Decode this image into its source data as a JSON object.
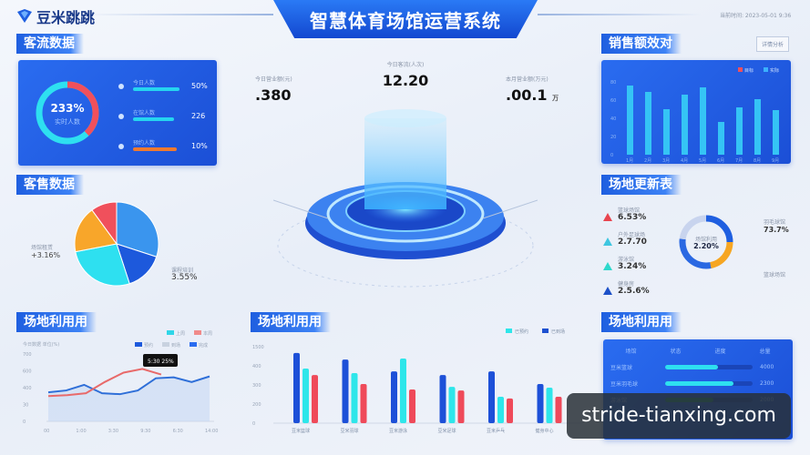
{
  "header": {
    "logo": "豆米跳跳",
    "title": "智慧体育场馆运营系统",
    "datetime": "当前时间: 2023-05-01 9:36"
  },
  "passenger": {
    "title": "客流数据",
    "donut_value": "233%",
    "donut_label": "实时人数",
    "donut_fraction": 0.38,
    "rows": [
      {
        "label": "今日人数",
        "value": "50%",
        "fill": 0.85,
        "color": "#25d5f0"
      },
      {
        "label": "在馆人数",
        "value": "226",
        "fill": 0.75,
        "color": "#25d5f0"
      },
      {
        "label": "预约人数",
        "value": "10%",
        "fill": 0.8,
        "color": "#f07a30"
      }
    ]
  },
  "sales_pie": {
    "title": "客售数据",
    "left_label": "场馆租赁",
    "left_value": "+3.16%",
    "right_label": "课程培训",
    "right_value": "3.55%",
    "slices": [
      {
        "value": 30,
        "color": "#3a95ee"
      },
      {
        "value": 15,
        "color": "#1d59dc"
      },
      {
        "value": 27,
        "color": "#2ee0f0"
      },
      {
        "value": 18,
        "color": "#f8a62a"
      },
      {
        "value": 10,
        "color": "#f0505c"
      }
    ]
  },
  "kpis": [
    {
      "label": "今日营业额(元)",
      "value": ".380",
      "unit": ""
    },
    {
      "label": "今日客流(人次)",
      "value": "12.20",
      "unit": ""
    },
    {
      "label": "本月营业额(万元)",
      "value": ".00.1",
      "unit": "万"
    }
  ],
  "sales_bar": {
    "title": "销售额效对",
    "button": "详情分析",
    "legend": [
      {
        "label": "目标",
        "color": "#f0505c"
      },
      {
        "label": "实际",
        "color": "#3ab0ff"
      }
    ],
    "y_ticks": [
      "0",
      "20",
      "40",
      "60",
      "80"
    ],
    "categories": [
      "1月",
      "2月",
      "3月",
      "4月",
      "5月",
      "6月",
      "7月",
      "8月",
      "9月"
    ],
    "values": [
      76,
      69,
      50,
      66,
      74,
      36,
      52,
      61,
      49
    ]
  },
  "venue_ring": {
    "title": "场地更新表",
    "center_label": "场馆利用",
    "center_value": "2.20%",
    "right_top_label": "羽毛球馆",
    "right_top_value": "73.7%",
    "right_bottom_label": "篮球场馆",
    "items": [
      {
        "label": "篮球场馆",
        "value": "6.53%",
        "color": "#e8444e"
      },
      {
        "label": "户外足球场",
        "value": "2.7.70",
        "color": "#3ec6e0"
      },
      {
        "label": "游泳馆",
        "value": "3.24%",
        "color": "#2ed8cc"
      },
      {
        "label": "健身房",
        "value": "2.5.6%",
        "color": "#1d50c8"
      }
    ],
    "segments": [
      {
        "value": 25,
        "color": "#1f5fe0"
      },
      {
        "value": 22,
        "color": "#f6a623"
      },
      {
        "value": 30,
        "color": "#2a68e2"
      },
      {
        "value": 23,
        "color": "#c8d4ee"
      }
    ]
  },
  "util_line": {
    "title": "场地利用用",
    "subtitle": "今日数据 单位(%)",
    "legend_top": [
      {
        "label": "上周",
        "color": "#2fd6e8"
      },
      {
        "label": "本周",
        "color": "#f08a8a"
      }
    ],
    "legend_bottom": [
      {
        "label": "预约",
        "color": "#1d59dc"
      },
      {
        "label": "到场",
        "color": "#c8d2e0"
      },
      {
        "label": "完成",
        "color": "#2a6cf0"
      }
    ],
    "tooltip": "5:30 25%",
    "x_ticks": [
      "00",
      "1:00",
      "3:30",
      "9:30",
      "6:30",
      "14:00"
    ],
    "y_ticks": [
      "0",
      "30",
      "400",
      "600",
      "700"
    ],
    "series": [
      {
        "color": "#2f6fd8",
        "values": [
          310,
          330,
          390,
          300,
          290,
          330,
          460,
          470,
          420,
          480
        ]
      },
      {
        "color": "#e86a6a",
        "values": [
          270,
          280,
          300,
          420,
          520,
          560,
          500
        ]
      }
    ]
  },
  "util_bar": {
    "title": "场地利用用",
    "legend": [
      {
        "label": "已预约",
        "color": "#2ee6ea"
      },
      {
        "label": "已到场",
        "color": "#1d50d0"
      }
    ],
    "y_ticks": [
      "0",
      "200",
      "300",
      "400",
      "1500"
    ],
    "categories": [
      "豆米篮球",
      "豆米羽球",
      "豆米游泳",
      "豆米足球",
      "豆米乒乓",
      "健身中心"
    ],
    "series": [
      {
        "color": "#1d50d8",
        "values": [
          367,
          333,
          271,
          252,
          271,
          205
        ]
      },
      {
        "color": "#2ee6ea",
        "values": [
          286,
          262,
          338,
          190,
          138,
          186
        ]
      },
      {
        "color": "#ef4a5a",
        "values": [
          252,
          205,
          176,
          171,
          129,
          138
        ]
      }
    ]
  },
  "util_table": {
    "title": "场地利用用",
    "headers": [
      "场馆",
      "状态",
      "进度",
      "总量"
    ],
    "rows": [
      {
        "name": "豆米篮球",
        "fill": 0.6,
        "value": "4000",
        "color": "#2ee0f0"
      },
      {
        "name": "豆米羽毛球",
        "fill": 0.78,
        "value": "2300",
        "color": "#2ee0f0"
      },
      {
        "name": "游泳馆",
        "fill": 0.55,
        "value": "2000",
        "color": "#1f8a6a"
      }
    ]
  },
  "watermark": "stride-tianxing.com"
}
